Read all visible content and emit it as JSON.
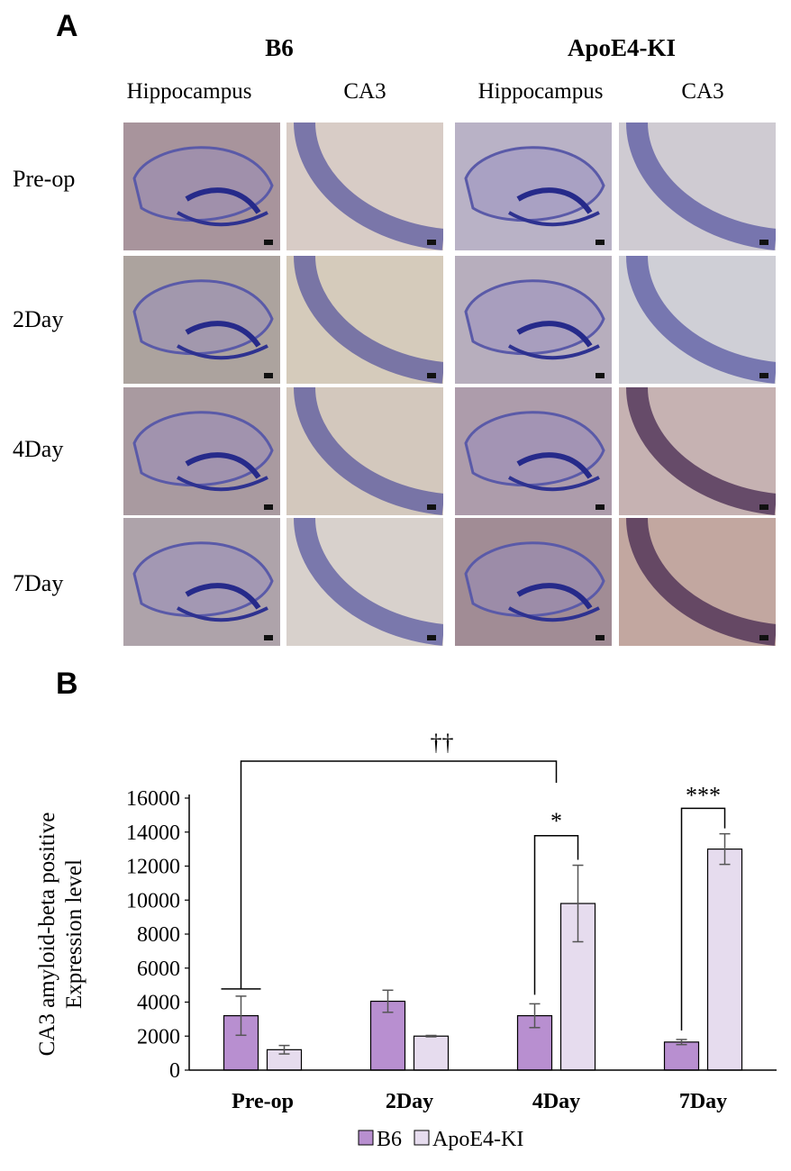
{
  "panel_a": {
    "letter": "A",
    "groups": [
      "B6",
      "ApoE4-KI"
    ],
    "columns": [
      "Hippocampus",
      "CA3",
      "Hippocampus",
      "CA3"
    ],
    "rows": [
      "Pre-op",
      "2Day",
      "4Day",
      "7Day"
    ]
  },
  "panel_b": {
    "letter": "B"
  },
  "chart_data": {
    "type": "bar",
    "categories": [
      "Pre-op",
      "2Day",
      "4Day",
      "7Day"
    ],
    "series": [
      {
        "name": "B6",
        "values": [
          3200,
          4050,
          3200,
          1650
        ],
        "errors": [
          1150,
          650,
          700,
          150
        ],
        "color": "#b88fd0"
      },
      {
        "name": "ApoE4-KI",
        "values": [
          1200,
          2000,
          9800,
          13000
        ],
        "errors": [
          250,
          40,
          2250,
          900
        ],
        "color": "#e6dcee"
      }
    ],
    "ylabel": "CA3 amyloid-beta positive Expression level",
    "ylabel_lines": [
      "CA3 amyloid-beta positive",
      "Expression level"
    ],
    "ylim": [
      0,
      16000
    ],
    "yticks": [
      0,
      2000,
      4000,
      6000,
      8000,
      10000,
      12000,
      14000,
      16000
    ],
    "legend": "bottom",
    "significance": [
      {
        "label": "††",
        "compare": "B6 Pre-op vs ApoE4-KI 4Day"
      },
      {
        "label": "*",
        "category": "4Day"
      },
      {
        "label": "***",
        "category": "7Day"
      }
    ]
  }
}
